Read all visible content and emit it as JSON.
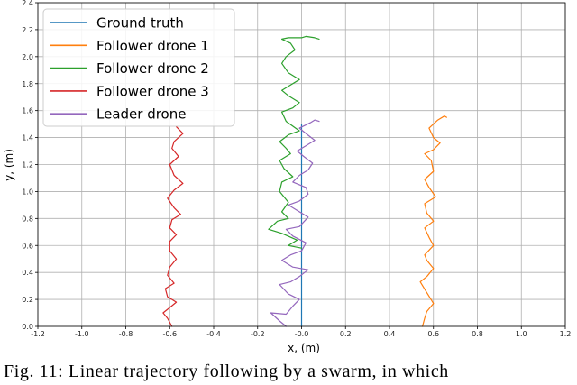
{
  "chart_data": {
    "type": "line",
    "xlabel": "x, (m)",
    "ylabel": "y, (m)",
    "xlim": [
      -1.2,
      1.2
    ],
    "ylim": [
      0.0,
      2.4
    ],
    "xticks": [
      "-1.2",
      "-1.0",
      "-0.8",
      "-0.6",
      "-0.4",
      "-0.2",
      "-0.0",
      "0.2",
      "0.4",
      "0.6",
      "0.8",
      "1.0",
      "1.2"
    ],
    "yticks": [
      "0.0",
      "0.2",
      "0.4",
      "0.6",
      "0.8",
      "1.0",
      "1.2",
      "1.4",
      "1.6",
      "1.8",
      "2.0",
      "2.2",
      "2.4"
    ],
    "grid": true,
    "legend_position": "top-left",
    "series": [
      {
        "name": "Ground truth",
        "color": "#1f77b4",
        "points": [
          [
            0.0,
            0.0
          ],
          [
            0.0,
            1.5
          ]
        ]
      },
      {
        "name": "Follower drone 1",
        "color": "#ff7f0e",
        "points": [
          [
            0.55,
            0.0
          ],
          [
            0.56,
            0.06
          ],
          [
            0.57,
            0.11
          ],
          [
            0.6,
            0.17
          ],
          [
            0.57,
            0.25
          ],
          [
            0.54,
            0.33
          ],
          [
            0.57,
            0.37
          ],
          [
            0.6,
            0.43
          ],
          [
            0.57,
            0.49
          ],
          [
            0.56,
            0.53
          ],
          [
            0.6,
            0.6
          ],
          [
            0.58,
            0.66
          ],
          [
            0.56,
            0.73
          ],
          [
            0.6,
            0.78
          ],
          [
            0.57,
            0.84
          ],
          [
            0.56,
            0.91
          ],
          [
            0.61,
            0.96
          ],
          [
            0.58,
            1.03
          ],
          [
            0.56,
            1.09
          ],
          [
            0.6,
            1.15
          ],
          [
            0.59,
            1.23
          ],
          [
            0.56,
            1.28
          ],
          [
            0.6,
            1.31
          ],
          [
            0.63,
            1.36
          ],
          [
            0.6,
            1.4
          ],
          [
            0.58,
            1.47
          ],
          [
            0.62,
            1.53
          ],
          [
            0.65,
            1.56
          ],
          [
            0.66,
            1.55
          ]
        ]
      },
      {
        "name": "Follower drone 2",
        "color": "#2ca02c",
        "points": [
          [
            0.0,
            0.58
          ],
          [
            -0.06,
            0.6
          ],
          [
            -0.02,
            0.64
          ],
          [
            -0.09,
            0.69
          ],
          [
            -0.15,
            0.72
          ],
          [
            -0.11,
            0.78
          ],
          [
            -0.06,
            0.8
          ],
          [
            -0.09,
            0.85
          ],
          [
            -0.06,
            0.92
          ],
          [
            -0.1,
            1.0
          ],
          [
            -0.09,
            1.07
          ],
          [
            -0.04,
            1.11
          ],
          [
            -0.08,
            1.17
          ],
          [
            -0.1,
            1.23
          ],
          [
            -0.05,
            1.28
          ],
          [
            -0.07,
            1.32
          ],
          [
            -0.1,
            1.37
          ],
          [
            -0.06,
            1.42
          ],
          [
            -0.01,
            1.45
          ],
          [
            -0.07,
            1.52
          ],
          [
            -0.09,
            1.59
          ],
          [
            -0.04,
            1.62
          ],
          [
            -0.01,
            1.66
          ],
          [
            -0.06,
            1.71
          ],
          [
            -0.09,
            1.75
          ],
          [
            -0.05,
            1.79
          ],
          [
            -0.01,
            1.83
          ],
          [
            -0.06,
            1.88
          ],
          [
            -0.09,
            1.95
          ],
          [
            -0.07,
            2.0
          ],
          [
            -0.03,
            2.05
          ],
          [
            -0.05,
            2.1
          ],
          [
            -0.09,
            2.13
          ],
          [
            -0.06,
            2.14
          ],
          [
            -0.02,
            2.14
          ],
          [
            0.0,
            2.14
          ],
          [
            0.02,
            2.15
          ],
          [
            0.06,
            2.14
          ],
          [
            0.08,
            2.13
          ]
        ]
      },
      {
        "name": "Follower drone 3",
        "color": "#d62728",
        "points": [
          [
            -0.59,
            0.0
          ],
          [
            -0.61,
            0.06
          ],
          [
            -0.63,
            0.1
          ],
          [
            -0.6,
            0.14
          ],
          [
            -0.57,
            0.18
          ],
          [
            -0.61,
            0.22
          ],
          [
            -0.62,
            0.28
          ],
          [
            -0.58,
            0.32
          ],
          [
            -0.61,
            0.38
          ],
          [
            -0.6,
            0.44
          ],
          [
            -0.57,
            0.5
          ],
          [
            -0.6,
            0.56
          ],
          [
            -0.6,
            0.63
          ],
          [
            -0.57,
            0.68
          ],
          [
            -0.6,
            0.73
          ],
          [
            -0.59,
            0.79
          ],
          [
            -0.55,
            0.83
          ],
          [
            -0.58,
            0.88
          ],
          [
            -0.61,
            0.95
          ],
          [
            -0.58,
            1.01
          ],
          [
            -0.54,
            1.06
          ],
          [
            -0.58,
            1.12
          ],
          [
            -0.6,
            1.2
          ],
          [
            -0.56,
            1.26
          ],
          [
            -0.59,
            1.32
          ],
          [
            -0.58,
            1.37
          ],
          [
            -0.54,
            1.43
          ],
          [
            -0.57,
            1.48
          ]
        ]
      },
      {
        "name": "Leader drone",
        "color": "#9467bd",
        "points": [
          [
            -0.07,
            0.0
          ],
          [
            -0.1,
            0.04
          ],
          [
            -0.14,
            0.1
          ],
          [
            -0.07,
            0.09
          ],
          [
            -0.04,
            0.15
          ],
          [
            -0.01,
            0.2
          ],
          [
            -0.06,
            0.24
          ],
          [
            -0.1,
            0.31
          ],
          [
            -0.05,
            0.33
          ],
          [
            -0.01,
            0.37
          ],
          [
            0.03,
            0.42
          ],
          [
            -0.04,
            0.44
          ],
          [
            -0.09,
            0.49
          ],
          [
            -0.05,
            0.53
          ],
          [
            0.0,
            0.56
          ],
          [
            0.02,
            0.62
          ],
          [
            -0.04,
            0.67
          ],
          [
            -0.07,
            0.72
          ],
          [
            -0.01,
            0.74
          ],
          [
            0.03,
            0.81
          ],
          [
            -0.02,
            0.86
          ],
          [
            -0.06,
            0.9
          ],
          [
            -0.01,
            0.93
          ],
          [
            0.03,
            0.98
          ],
          [
            0.02,
            1.03
          ],
          [
            -0.04,
            1.07
          ],
          [
            -0.01,
            1.12
          ],
          [
            0.03,
            1.16
          ],
          [
            0.05,
            1.21
          ],
          [
            0.01,
            1.26
          ],
          [
            -0.02,
            1.3
          ],
          [
            0.02,
            1.34
          ],
          [
            0.06,
            1.38
          ],
          [
            0.02,
            1.43
          ],
          [
            -0.01,
            1.47
          ],
          [
            0.04,
            1.51
          ],
          [
            0.06,
            1.53
          ],
          [
            0.08,
            1.52
          ]
        ]
      }
    ]
  },
  "caption": "Fig. 11: Linear trajectory following by a swarm, in which"
}
